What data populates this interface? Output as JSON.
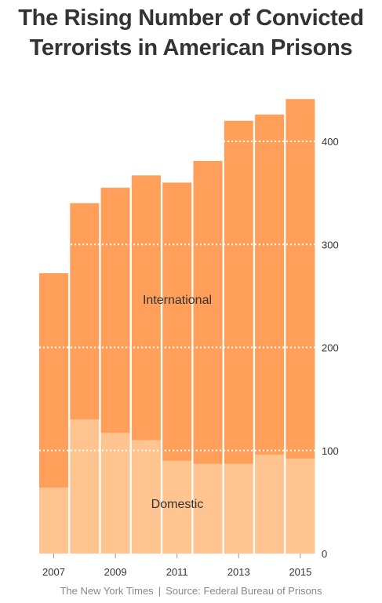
{
  "title_line1": "The Rising Number of Convicted",
  "title_line2": "Terrorists in American Prisons",
  "footer": {
    "publisher": "The New York Times",
    "separator": "|",
    "source": "Source: Federal Bureau of Prisons"
  },
  "colors": {
    "domestic": "#ffc48f",
    "international": "#ff9f59",
    "gridline": "#ffffff",
    "axis_text": "#333333",
    "source_text": "#888888"
  },
  "chart_data": {
    "type": "bar",
    "stacked": true,
    "title": "The Rising Number of Convicted Terrorists in American Prisons",
    "categories": [
      "2007",
      "2008",
      "2009",
      "2010",
      "2011",
      "2012",
      "2013",
      "2014",
      "2015"
    ],
    "x_tick_labels": [
      "2007",
      "2009",
      "2011",
      "2013",
      "2015"
    ],
    "series": [
      {
        "name": "Domestic",
        "values": [
          64,
          130,
          117,
          110,
          90,
          87,
          87,
          96,
          92
        ]
      },
      {
        "name": "International",
        "values": [
          208,
          210,
          238,
          257,
          270,
          294,
          333,
          330,
          349
        ]
      }
    ],
    "yticks": [
      0,
      100,
      200,
      300,
      400
    ],
    "ylim": [
      0,
      450
    ],
    "y_axis_side": "right",
    "grid": true,
    "xlabel": "",
    "ylabel": ""
  }
}
